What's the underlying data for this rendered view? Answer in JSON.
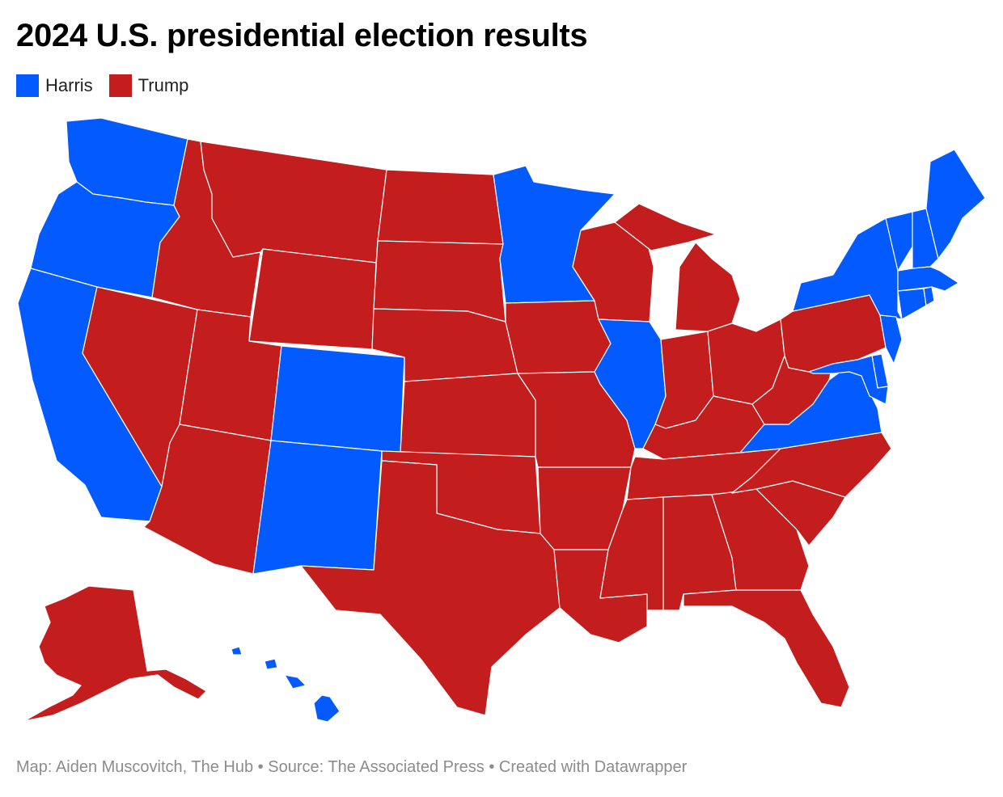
{
  "title": "2024 U.S. presidential election results",
  "legend": [
    {
      "label": "Harris",
      "color": "#035afe"
    },
    {
      "label": "Trump",
      "color": "#c31d1d"
    }
  ],
  "colors": {
    "harris": "#035afe",
    "trump": "#c31d1d",
    "border": "#ffffff"
  },
  "footer": "Map: Aiden Muscovitch, The Hub • Source: The Associated Press • Created with Datawrapper",
  "results": {
    "WA": "harris",
    "OR": "harris",
    "CA": "harris",
    "NV": "trump",
    "ID": "trump",
    "MT": "trump",
    "WY": "trump",
    "UT": "trump",
    "AZ": "trump",
    "CO": "harris",
    "NM": "harris",
    "ND": "trump",
    "SD": "trump",
    "NE": "trump",
    "KS": "trump",
    "OK": "trump",
    "TX": "trump",
    "MN": "harris",
    "IA": "trump",
    "MO": "trump",
    "AR": "trump",
    "LA": "trump",
    "WI": "trump",
    "IL": "harris",
    "MI": "trump",
    "IN": "trump",
    "OH": "trump",
    "KY": "trump",
    "TN": "trump",
    "MS": "trump",
    "AL": "trump",
    "GA": "trump",
    "FL": "trump",
    "SC": "trump",
    "NC": "trump",
    "VA": "harris",
    "WV": "trump",
    "PA": "trump",
    "NY": "harris",
    "VT": "harris",
    "NH": "harris",
    "ME": "harris",
    "MA": "harris",
    "CT": "harris",
    "RI": "harris",
    "NJ": "harris",
    "DE": "harris",
    "MD": "harris",
    "AK": "trump",
    "HI": "harris"
  }
}
